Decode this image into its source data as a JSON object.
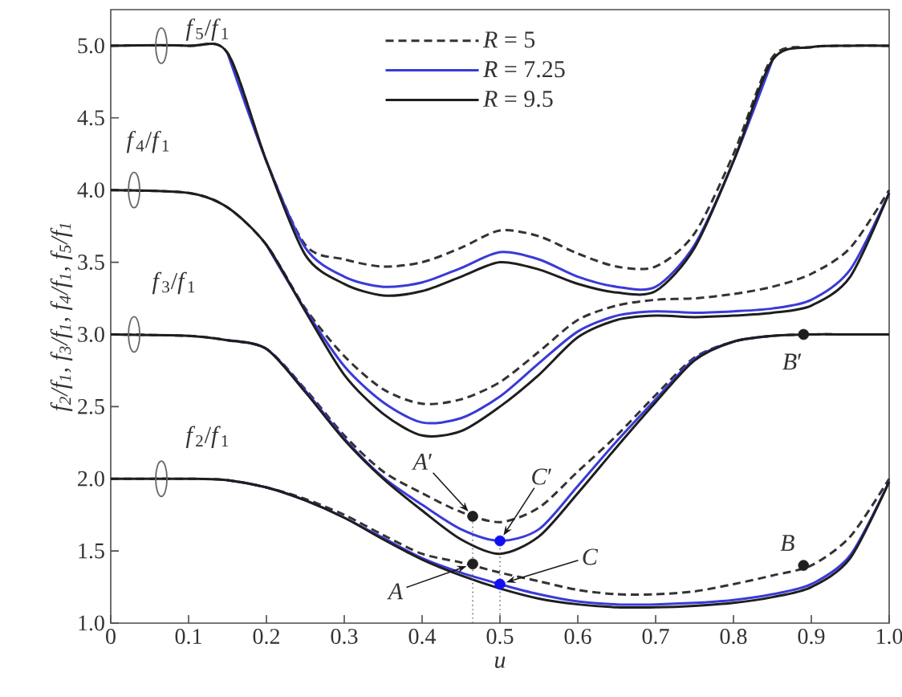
{
  "chart_data": {
    "type": "line",
    "xlabel": "u",
    "ylabel": "*f*$_{2}$/*f*$_{1}$, *f*$_{3}$/*f*$_{1}$, *f*$_{4}$/*f*$_{1}$, *f*$_{5}$/*f*$_{1}$",
    "x": [
      0,
      0.1,
      0.15,
      0.2,
      0.25,
      0.3,
      0.35,
      0.4,
      0.45,
      0.5,
      0.55,
      0.6,
      0.65,
      0.7,
      0.75,
      0.8,
      0.85,
      0.9,
      0.95,
      1.0
    ],
    "xlim": [
      0,
      1
    ],
    "ylim": [
      1.0,
      5.25
    ],
    "xticks": [
      0,
      0.1,
      0.2,
      0.3,
      0.4,
      0.5,
      0.6,
      0.7,
      0.8,
      0.9,
      {
        "value": 1,
        "label": "1.0"
      }
    ],
    "yticks": [
      {
        "value": 1,
        "label": "1.0"
      },
      1.5,
      {
        "value": 2,
        "label": "2.0"
      },
      2.5,
      {
        "value": 3,
        "label": "3.0"
      },
      3.5,
      {
        "value": 4,
        "label": "4.0"
      },
      4.5,
      {
        "value": 5,
        "label": "5.0"
      }
    ],
    "legend": "top",
    "marker": "none",
    "series": [
      {
        "name": "*R* = 5",
        "color": "#333333",
        "line_style": "dashed",
        "values": [
          5.0,
          5.0,
          4.95,
          4.2,
          3.62,
          3.52,
          3.47,
          3.5,
          3.6,
          3.72,
          3.68,
          3.56,
          3.47,
          3.47,
          3.7,
          4.25,
          4.92,
          4.99,
          5.0,
          5.0
        ]
      },
      {
        "color": "#333333",
        "line_style": "dashed",
        "values": [
          4.0,
          3.98,
          3.88,
          3.62,
          3.18,
          2.85,
          2.62,
          2.52,
          2.55,
          2.67,
          2.88,
          3.1,
          3.2,
          3.24,
          3.25,
          3.28,
          3.33,
          3.42,
          3.6,
          4.0
        ]
      },
      {
        "color": "#333333",
        "line_style": "dashed",
        "values": [
          3.0,
          2.99,
          2.96,
          2.9,
          2.62,
          2.3,
          2.05,
          1.9,
          1.77,
          1.7,
          1.8,
          2.05,
          2.3,
          2.58,
          2.84,
          2.95,
          2.99,
          3.0,
          3.0,
          3.0
        ]
      },
      {
        "color": "#333333",
        "line_style": "dashed",
        "values": [
          2.0,
          2.0,
          1.99,
          1.94,
          1.86,
          1.75,
          1.61,
          1.48,
          1.42,
          1.35,
          1.29,
          1.23,
          1.2,
          1.2,
          1.22,
          1.27,
          1.33,
          1.4,
          1.6,
          2.0
        ]
      },
      {
        "name": "*R* = 7.25",
        "color": "#3a3ad8",
        "line_style": "solid",
        "values": [
          null,
          null,
          4.95,
          4.2,
          3.6,
          3.4,
          3.33,
          3.36,
          3.46,
          3.57,
          3.52,
          3.4,
          3.33,
          3.33,
          3.62,
          4.2,
          4.9,
          null,
          null,
          null
        ]
      },
      {
        "color": "#3a3ad8",
        "line_style": "solid",
        "values": [
          null,
          null,
          null,
          3.62,
          3.17,
          2.78,
          2.53,
          2.39,
          2.42,
          2.57,
          2.8,
          3.02,
          3.13,
          3.16,
          3.15,
          3.16,
          3.18,
          3.24,
          3.45,
          3.98
        ]
      },
      {
        "color": "#3a3ad8",
        "line_style": "solid",
        "values": [
          null,
          null,
          2.96,
          2.9,
          2.61,
          2.28,
          2.01,
          1.82,
          1.65,
          1.57,
          1.65,
          1.95,
          2.26,
          2.55,
          2.83,
          2.95,
          2.99,
          null,
          null,
          null
        ]
      },
      {
        "color": "#3a3ad8",
        "line_style": "solid",
        "values": [
          null,
          null,
          1.99,
          1.94,
          1.85,
          1.73,
          1.59,
          1.45,
          1.35,
          1.27,
          1.2,
          1.15,
          1.13,
          1.13,
          1.14,
          1.16,
          1.2,
          1.27,
          1.47,
          1.98
        ]
      },
      {
        "name": "*R* = 9.5",
        "color": "#1e1e1e",
        "line_style": "solid",
        "values": [
          5.0,
          5.0,
          4.95,
          4.2,
          3.55,
          3.35,
          3.27,
          3.3,
          3.4,
          3.5,
          3.45,
          3.35,
          3.29,
          3.3,
          3.6,
          4.2,
          4.9,
          4.99,
          5.0,
          5.0
        ]
      },
      {
        "color": "#1e1e1e",
        "line_style": "solid",
        "values": [
          4.0,
          3.98,
          3.88,
          3.62,
          3.16,
          2.72,
          2.45,
          2.3,
          2.33,
          2.5,
          2.72,
          2.98,
          3.1,
          3.13,
          3.12,
          3.13,
          3.15,
          3.2,
          3.4,
          3.98
        ]
      },
      {
        "color": "#1e1e1e",
        "line_style": "solid",
        "values": [
          3.0,
          2.99,
          2.96,
          2.9,
          2.6,
          2.27,
          2.0,
          1.78,
          1.58,
          1.48,
          1.6,
          1.9,
          2.22,
          2.53,
          2.82,
          2.95,
          2.99,
          3.0,
          3.0,
          3.0
        ]
      },
      {
        "color": "#1e1e1e",
        "line_style": "solid",
        "values": [
          2.0,
          2.0,
          1.99,
          1.94,
          1.85,
          1.73,
          1.58,
          1.44,
          1.33,
          1.24,
          1.17,
          1.13,
          1.11,
          1.11,
          1.12,
          1.14,
          1.18,
          1.25,
          1.45,
          1.98
        ]
      },
      {
        "type": "scatter",
        "marker": "circle",
        "x": [
          0.465,
          0.465,
          0.5,
          0.5,
          0.89,
          0.89
        ],
        "values": [
          1.41,
          1.74,
          1.27,
          1.57,
          1.4,
          3.0
        ],
        "colors": [
          "#1e1e1e",
          "#1e1e1e",
          "#1010f0",
          "#1010f0",
          "#1e1e1e",
          "#1e1e1e"
        ]
      }
    ],
    "ref_lines": [
      {
        "axis": "x",
        "value": 0.465,
        "line_style": "dotted",
        "color": "#555555"
      },
      {
        "axis": "x",
        "value": 0.5,
        "line_style": "dotted",
        "color": "#555555"
      }
    ],
    "annotations": [
      {
        "text": "*f*$_{5}$/*f*$_{1}$",
        "x": 0.065,
        "y": 5.0
      },
      {
        "text": "*f*$_{4}$/*f*$_{1}$",
        "x": 0.03,
        "y": 4.0
      },
      {
        "text": "*f*$_{3}$/*f*$_{1}$",
        "x": 0.03,
        "y": 3.0
      },
      {
        "text": "*f*$_{2}$/*f*$_{1}$",
        "x": 0.065,
        "y": 2.0
      },
      {
        "text": "*A*",
        "x": 0.465,
        "y": 1.41
      },
      {
        "text": "*A*′",
        "x": 0.465,
        "y": 1.74
      },
      {
        "text": "*C*",
        "x": 0.5,
        "y": 1.27
      },
      {
        "text": "*C*′",
        "x": 0.5,
        "y": 1.57
      },
      {
        "text": "*B*",
        "x": 0.89,
        "y": 1.4
      },
      {
        "text": "*B*′",
        "x": 0.89,
        "y": 3.0
      }
    ]
  }
}
